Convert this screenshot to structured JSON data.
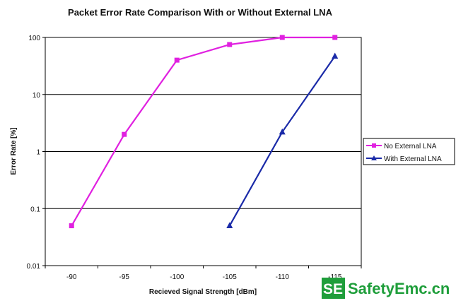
{
  "chart_data": {
    "type": "line",
    "title": "Packet Error Rate Comparison With or Without External LNA",
    "xlabel": "Recieved Signal Strength [dBm]",
    "ylabel": "Error Rate [%]",
    "x_ticks": [
      -90,
      -95,
      -100,
      -105,
      -110,
      -115
    ],
    "x_tick_labels": [
      "-90",
      "-95",
      "-100",
      "-105",
      "-110",
      "-115"
    ],
    "xlim": [
      -87.5,
      -117.5
    ],
    "y_scale": "log",
    "ylim": [
      0.01,
      100
    ],
    "y_ticks": [
      0.01,
      0.1,
      1,
      10,
      100
    ],
    "y_tick_labels": [
      "0.01",
      "0.1",
      "1",
      "10",
      "100"
    ],
    "grid": "horizontal",
    "legend_position": "right",
    "series": [
      {
        "name": "No External LNA",
        "color": "#e020e0",
        "marker": "square",
        "x": [
          -90,
          -95,
          -100,
          -105,
          -110,
          -115
        ],
        "y": [
          0.05,
          2,
          40,
          75,
          100,
          100
        ]
      },
      {
        "name": "With External LNA",
        "color": "#1a2aa8",
        "marker": "triangle",
        "x": [
          -105,
          -110,
          -115
        ],
        "y": [
          0.05,
          2.2,
          47
        ]
      }
    ]
  },
  "watermark": {
    "badge": "SE",
    "text": "SafetyEmc.cn",
    "color": "#1f9e3b"
  }
}
